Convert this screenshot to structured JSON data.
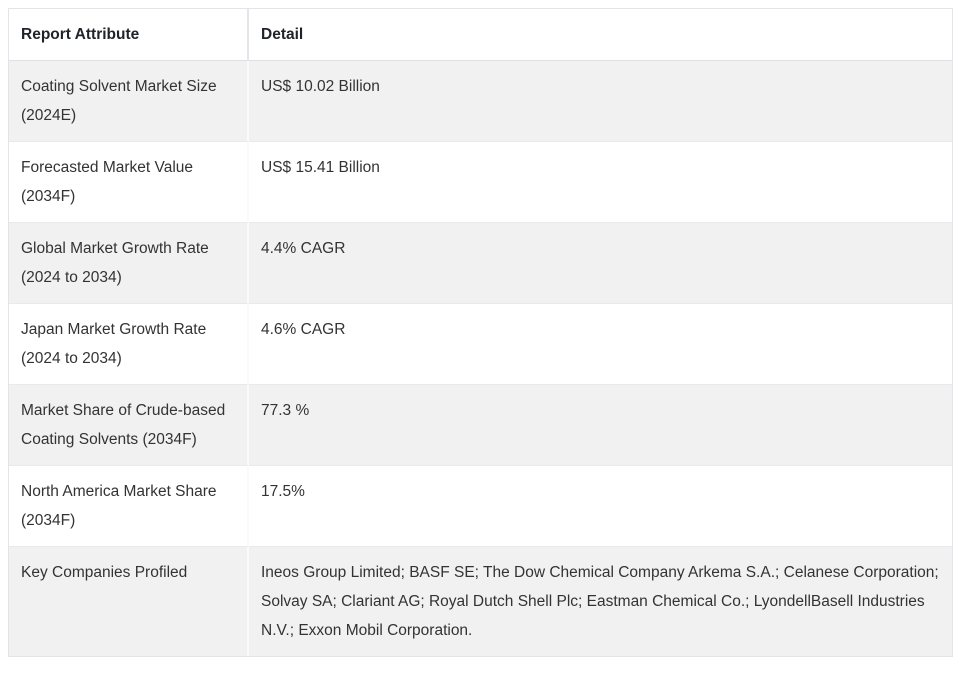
{
  "table": {
    "columns": [
      {
        "label": "Report Attribute"
      },
      {
        "label": "Detail"
      }
    ],
    "rows": [
      {
        "attribute": "Coating Solvent Market Size (2024E)",
        "detail": "US$ 10.02 Billion"
      },
      {
        "attribute": "Forecasted Market Value (2034F)",
        "detail": "US$ 15.41 Billion"
      },
      {
        "attribute": "Global Market Growth Rate (2024 to 2034)",
        "detail": "4.4% CAGR"
      },
      {
        "attribute": "Japan Market Growth Rate (2024 to 2034)",
        "detail": "4.6% CAGR"
      },
      {
        "attribute": "Market Share of Crude-based Coating Solvents (2034F)",
        "detail": "77.3 %"
      },
      {
        "attribute": "North America Market Share (2034F)",
        "detail": "17.5%"
      },
      {
        "attribute": "Key Companies Profiled",
        "detail": "Ineos Group Limited; BASF SE; The Dow Chemical Company Arkema S.A.; Celanese Corporation; Solvay SA; Clariant AG; Royal Dutch Shell Plc; Eastman Chemical Co.; LyondellBasell Industries N.V.; Exxon Mobil Corporation."
      }
    ]
  },
  "colors": {
    "row_stripe": "#f1f1f2",
    "table_border": "#e4e4e8",
    "header_text": "#1f2328",
    "body_text": "#333333",
    "background": "#ffffff"
  }
}
